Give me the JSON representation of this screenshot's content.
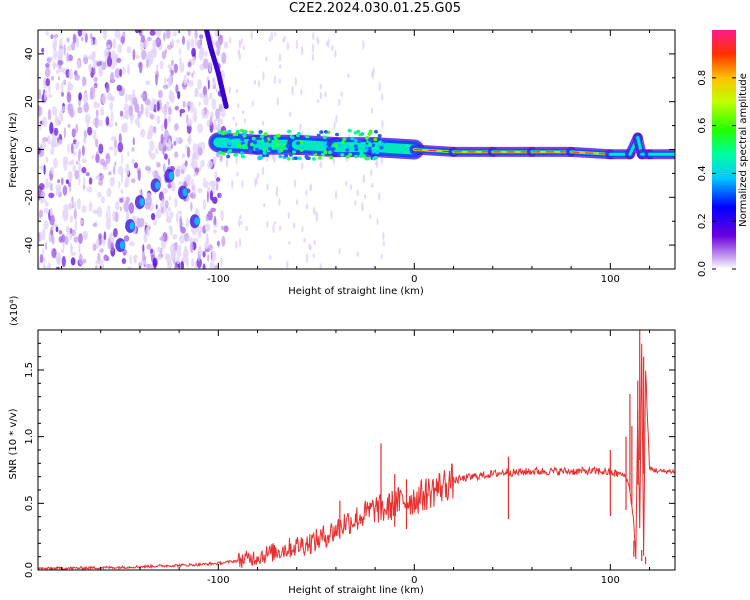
{
  "title": "C2E2.2024.030.01.25.G05",
  "chart_data": [
    {
      "type": "heatmap",
      "xlabel": "Height of straight line (km)",
      "ylabel": "Frequency (Hz)",
      "xlim": [
        -192,
        133
      ],
      "ylim": [
        -50,
        50
      ],
      "xticks": [
        -100,
        0,
        100
      ],
      "yticks": [
        -40,
        -20,
        0,
        20,
        40
      ],
      "colorbar": {
        "label": "Normalized spectral amplitude",
        "range": [
          0.0,
          1.0
        ],
        "ticks": [
          "0.0",
          "0.2",
          "0.4",
          "0.6",
          "0.8"
        ]
      },
      "features": {
        "ridge": [
          [
            -100,
            3
          ],
          [
            -80,
            2
          ],
          [
            -60,
            2
          ],
          [
            -40,
            1
          ],
          [
            -20,
            1
          ],
          [
            0,
            0
          ],
          [
            20,
            -1
          ],
          [
            40,
            -1
          ],
          [
            60,
            -1
          ],
          [
            80,
            -1
          ],
          [
            100,
            -2
          ],
          [
            110,
            -2
          ],
          [
            114,
            5
          ],
          [
            116,
            -2
          ],
          [
            120,
            -2
          ],
          [
            133,
            -2
          ]
        ],
        "arc": [
          [
            -150,
            -40
          ],
          [
            -145,
            -32
          ],
          [
            -140,
            -22
          ],
          [
            -132,
            -15
          ],
          [
            -125,
            -11
          ],
          [
            -118,
            -18
          ],
          [
            -112,
            -30
          ]
        ],
        "upper_streak": [
          [
            -106,
            50
          ],
          [
            -104,
            43
          ],
          [
            -100,
            32
          ],
          [
            -96,
            18
          ]
        ],
        "noise_region_x": [
          -192,
          -96
        ],
        "noise_region_sparse_x": [
          -96,
          -15
        ]
      }
    },
    {
      "type": "line",
      "xlabel": "Height of straight line (km)",
      "ylabel": "SNR (10 * v/v)",
      "y_multiplier_label": "(x10⁴)",
      "xlim": [
        -192,
        133
      ],
      "ylim": [
        0,
        1.8
      ],
      "xticks": [
        -100,
        0,
        100
      ],
      "yticks": [
        "0.0",
        "0.5",
        "1.0",
        "1.5"
      ],
      "line_color": "#e83030",
      "series": [
        {
          "x": [
            -192,
            -170,
            -150,
            -130,
            -110,
            -100,
            -90,
            -80,
            -70,
            -60,
            -50,
            -40,
            -35,
            -30,
            -25,
            -20,
            -15,
            -10,
            -5,
            0,
            10,
            20,
            30,
            40,
            45,
            48,
            50,
            60,
            70,
            80,
            90,
            95,
            100,
            105,
            108,
            110,
            112,
            113,
            114,
            115,
            116,
            117,
            118,
            120,
            125,
            133
          ],
          "y": [
            0.01,
            0.015,
            0.02,
            0.03,
            0.04,
            0.05,
            0.07,
            0.1,
            0.14,
            0.18,
            0.22,
            0.3,
            0.36,
            0.38,
            0.42,
            0.46,
            0.45,
            0.5,
            0.52,
            0.53,
            0.6,
            0.67,
            0.7,
            0.72,
            0.73,
            0.74,
            0.73,
            0.74,
            0.74,
            0.74,
            0.74,
            0.74,
            0.73,
            0.72,
            0.7,
            0.6,
            0.35,
            0.1,
            1.2,
            0.3,
            1.7,
            0.1,
            1.5,
            0.76,
            0.74,
            0.74
          ]
        }
      ],
      "spikes": [
        [
          -38,
          0.52
        ],
        [
          -17,
          0.95
        ],
        [
          -10,
          0.72
        ],
        [
          -4,
          0.68
        ],
        [
          48,
          0.85
        ],
        [
          100,
          0.9
        ],
        [
          108,
          1.0
        ],
        [
          110,
          1.32
        ],
        [
          111,
          1.08
        ],
        [
          112,
          0.22
        ],
        [
          114,
          1.42
        ],
        [
          115,
          1.83
        ],
        [
          116,
          0.15
        ],
        [
          117,
          1.6
        ],
        [
          118,
          0.1
        ]
      ]
    }
  ]
}
